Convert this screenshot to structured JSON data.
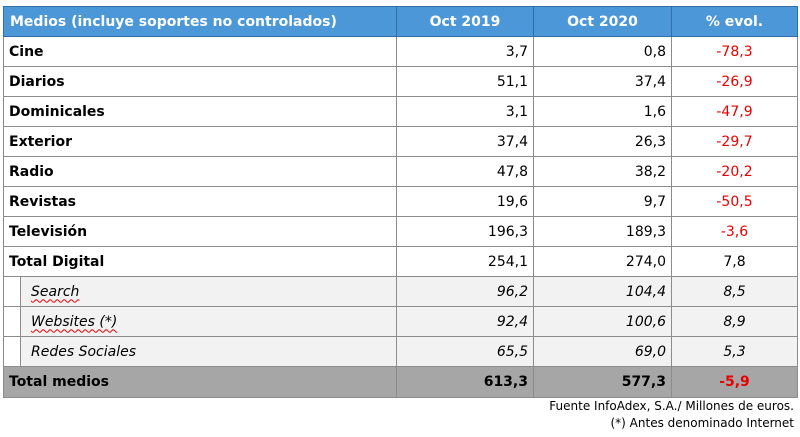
{
  "headers": [
    "Medios (incluye soportes no controlados)",
    "Oct 2019",
    "Oct 2020",
    "% evol."
  ],
  "rows": [
    {
      "label": "Cine",
      "oct2019": "3,7",
      "oct2020": "0,8",
      "evol": "-78,3"
    },
    {
      "label": "Diarios",
      "oct2019": "51,1",
      "oct2020": "37,4",
      "evol": "-26,9"
    },
    {
      "label": "Dominicales",
      "oct2019": "3,1",
      "oct2020": "1,6",
      "evol": "-47,9"
    },
    {
      "label": "Exterior",
      "oct2019": "37,4",
      "oct2020": "26,3",
      "evol": "-29,7"
    },
    {
      "label": "Radio",
      "oct2019": "47,8",
      "oct2020": "38,2",
      "evol": "-20,2"
    },
    {
      "label": "Revistas",
      "oct2019": "19,6",
      "oct2020": "9,7",
      "evol": "-50,5"
    },
    {
      "label": "Televisión",
      "oct2019": "196,3",
      "oct2020": "189,3",
      "evol": "-3,6"
    },
    {
      "label": "Total Digital",
      "oct2019": "254,1",
      "oct2020": "274,0",
      "evol": "7,8"
    }
  ],
  "subrows": [
    {
      "label": "Search",
      "oct2019": "96,2",
      "oct2020": "104,4",
      "evol": "8,5"
    },
    {
      "label": "Websites (*)",
      "oct2019": "92,4",
      "oct2020": "100,6",
      "evol": "8,9"
    },
    {
      "label": "Redes Sociales",
      "oct2019": "65,5",
      "oct2020": "69,0",
      "evol": "5,3"
    }
  ],
  "total": {
    "label": "Total medios",
    "oct2019": "613,3",
    "oct2020": "577,3",
    "evol": "-5,9"
  },
  "footer": {
    "source": "Fuente InfoAdex, S.A./ Millones de euros.",
    "note": "(*) Antes denominado Internet"
  },
  "colors": {
    "header_bg": "#4b97d8",
    "negative": "#e60000",
    "total_bg": "#a6a6a6",
    "sub_bg": "#f2f2f2"
  }
}
